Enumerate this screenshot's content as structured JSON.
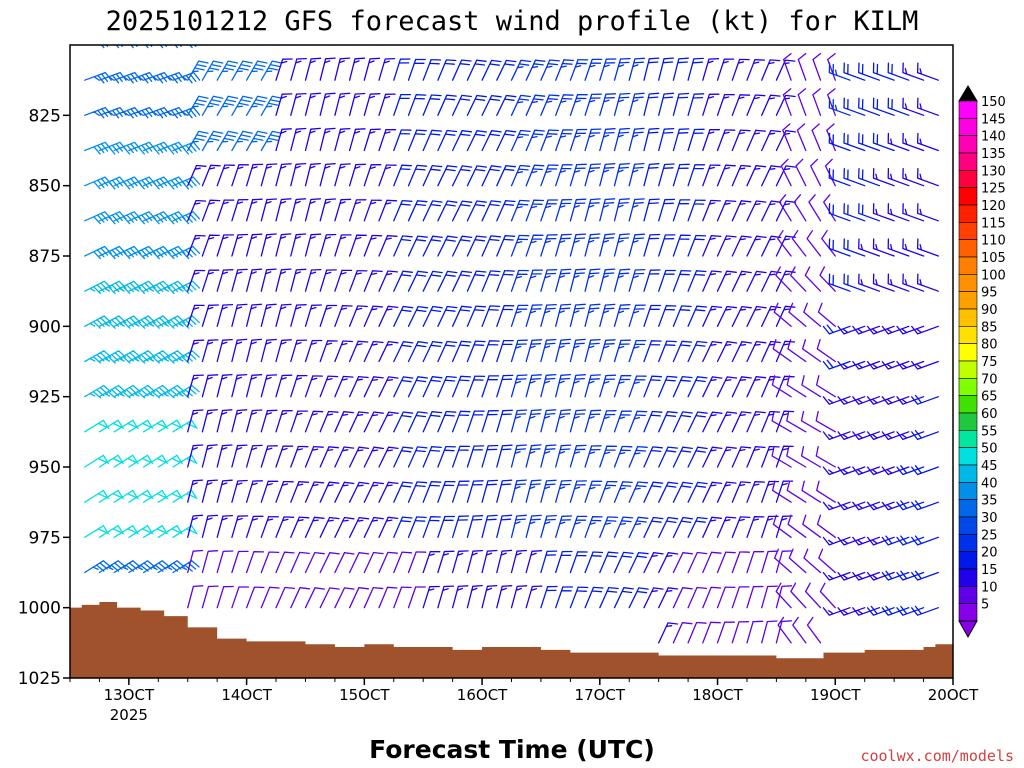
{
  "chart_data": {
    "type": "wind-barb-time-height",
    "title": "2025101212 GFS forecast wind profile (kt) for KILM",
    "xlabel": "Forecast Time (UTC)",
    "ylabel": "",
    "credit": "coolwx.com/models",
    "x_ticks": [
      {
        "label": "13OCT",
        "sub": "2025",
        "day": 13
      },
      {
        "label": "14OCT",
        "sub": "",
        "day": 14
      },
      {
        "label": "15OCT",
        "sub": "",
        "day": 15
      },
      {
        "label": "16OCT",
        "sub": "",
        "day": 16
      },
      {
        "label": "17OCT",
        "sub": "",
        "day": 17
      },
      {
        "label": "18OCT",
        "sub": "",
        "day": 18
      },
      {
        "label": "19OCT",
        "sub": "",
        "day": 19
      },
      {
        "label": "20OCT",
        "sub": "",
        "day": 20
      }
    ],
    "x_range_days": [
      12.5,
      20.0
    ],
    "y_ticks": [
      "825",
      "850",
      "875",
      "900",
      "925",
      "950",
      "975",
      "1000",
      "1025"
    ],
    "y_range_hpa": [
      800,
      1025
    ],
    "pressure_levels": [
      800,
      812.5,
      825,
      837.5,
      850,
      862.5,
      875,
      887.5,
      900,
      912.5,
      925,
      937.5,
      950,
      962.5,
      975,
      987.5,
      1000,
      1012.5
    ],
    "time_step_hours": 3,
    "colorbar": {
      "unit": "kt",
      "labels": [
        "150",
        "145",
        "140",
        "135",
        "130",
        "125",
        "120",
        "115",
        "110",
        "105",
        "100",
        "95",
        "90",
        "85",
        "80",
        "75",
        "70",
        "65",
        "60",
        "55",
        "50",
        "45",
        "40",
        "35",
        "30",
        "25",
        "20",
        "15",
        "10",
        "5"
      ],
      "colors": [
        "#ff00ff",
        "#ff00e0",
        "#ff00b4",
        "#ff0080",
        "#ff0040",
        "#ff0000",
        "#ff2000",
        "#ff4000",
        "#ff6000",
        "#ff8000",
        "#ff9000",
        "#ffa000",
        "#ffc000",
        "#ffe000",
        "#ffff00",
        "#c0ff00",
        "#80ff00",
        "#40e000",
        "#20c840",
        "#00e8a0",
        "#00e0e0",
        "#00b8e8",
        "#0090e8",
        "#0068e8",
        "#0048e8",
        "#0030e8",
        "#0018e8",
        "#2000e8",
        "#6000e8",
        "#8800e8"
      ]
    },
    "surface_pressure_hpa": [
      {
        "day": 12.5,
        "p": 1000
      },
      {
        "day": 12.6,
        "p": 999
      },
      {
        "day": 12.75,
        "p": 998
      },
      {
        "day": 12.9,
        "p": 1000
      },
      {
        "day": 13.1,
        "p": 1001
      },
      {
        "day": 13.3,
        "p": 1003
      },
      {
        "day": 13.5,
        "p": 1007
      },
      {
        "day": 13.75,
        "p": 1011
      },
      {
        "day": 14.0,
        "p": 1012
      },
      {
        "day": 14.25,
        "p": 1012
      },
      {
        "day": 14.5,
        "p": 1013
      },
      {
        "day": 14.75,
        "p": 1014
      },
      {
        "day": 15.0,
        "p": 1013
      },
      {
        "day": 15.25,
        "p": 1014
      },
      {
        "day": 15.5,
        "p": 1014
      },
      {
        "day": 15.75,
        "p": 1015
      },
      {
        "day": 16.0,
        "p": 1014
      },
      {
        "day": 16.25,
        "p": 1014
      },
      {
        "day": 16.5,
        "p": 1015
      },
      {
        "day": 16.75,
        "p": 1016
      },
      {
        "day": 17.0,
        "p": 1016
      },
      {
        "day": 17.25,
        "p": 1016
      },
      {
        "day": 17.5,
        "p": 1017
      },
      {
        "day": 17.75,
        "p": 1017
      },
      {
        "day": 18.0,
        "p": 1017
      },
      {
        "day": 18.25,
        "p": 1017
      },
      {
        "day": 18.5,
        "p": 1018
      },
      {
        "day": 18.75,
        "p": 1018
      },
      {
        "day": 18.9,
        "p": 1016
      },
      {
        "day": 19.1,
        "p": 1016
      },
      {
        "day": 19.25,
        "p": 1015
      },
      {
        "day": 19.5,
        "p": 1015
      },
      {
        "day": 19.75,
        "p": 1014
      },
      {
        "day": 19.85,
        "p": 1013
      },
      {
        "day": 20.0,
        "p": 1013
      }
    ],
    "wind_regimes": [
      {
        "period": "12.5-13.4",
        "levels": "low",
        "direction_deg": 60,
        "speed_kt": 45
      },
      {
        "period": "12.5-13.4",
        "levels": "upper",
        "direction_deg": 70,
        "speed_kt": 35
      },
      {
        "period": "13.4-18.5",
        "levels": "all",
        "direction_deg": 20,
        "speed_kt": 20
      },
      {
        "period": "18.5-19.1",
        "levels": "low",
        "direction_deg": 330,
        "speed_kt": 10
      },
      {
        "period": "19.1-20.0",
        "levels": "low",
        "direction_deg": 250,
        "speed_kt": 20
      },
      {
        "period": "19.1-20.0",
        "levels": "upper",
        "direction_deg": 290,
        "speed_kt": 20
      }
    ]
  }
}
